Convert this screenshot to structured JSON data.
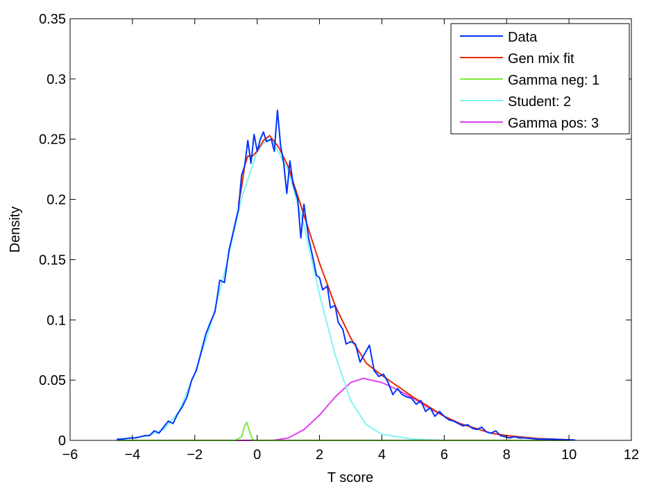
{
  "chart_data": {
    "type": "line",
    "title": "",
    "xlabel": "T score",
    "ylabel": "Density",
    "xlim": [
      -6,
      12
    ],
    "ylim": [
      0,
      0.35
    ],
    "xticks": [
      "-6",
      "-4",
      "-2",
      "0",
      "2",
      "4",
      "6",
      "8",
      "10",
      "12"
    ],
    "yticks": [
      "0",
      "0.05",
      "0.1",
      "0.15",
      "0.2",
      "0.25",
      "0.3",
      "0.35"
    ],
    "grid": false,
    "legend_position": "top-right",
    "series": [
      {
        "name": "Data",
        "color": "#0033ff",
        "points": [
          [
            -4.5,
            0.001
          ],
          [
            -4.35,
            0.001
          ],
          [
            -4.2,
            0.0015
          ],
          [
            -4.05,
            0.002
          ],
          [
            -3.9,
            0.002
          ],
          [
            -3.75,
            0.003
          ],
          [
            -3.6,
            0.004
          ],
          [
            -3.45,
            0.004
          ],
          [
            -3.3,
            0.008
          ],
          [
            -3.15,
            0.006
          ],
          [
            -3.0,
            0.011
          ],
          [
            -2.85,
            0.016
          ],
          [
            -2.7,
            0.014
          ],
          [
            -2.55,
            0.022
          ],
          [
            -2.4,
            0.028
          ],
          [
            -2.25,
            0.036
          ],
          [
            -2.1,
            0.05
          ],
          [
            -1.95,
            0.058
          ],
          [
            -1.8,
            0.073
          ],
          [
            -1.65,
            0.088
          ],
          [
            -1.5,
            0.098
          ],
          [
            -1.35,
            0.107
          ],
          [
            -1.2,
            0.133
          ],
          [
            -1.05,
            0.131
          ],
          [
            -0.9,
            0.158
          ],
          [
            -0.75,
            0.175
          ],
          [
            -0.6,
            0.192
          ],
          [
            -0.5,
            0.22
          ],
          [
            -0.4,
            0.228
          ],
          [
            -0.3,
            0.249
          ],
          [
            -0.2,
            0.23
          ],
          [
            -0.1,
            0.254
          ],
          [
            0,
            0.24
          ],
          [
            0.1,
            0.25
          ],
          [
            0.2,
            0.256
          ],
          [
            0.3,
            0.248
          ],
          [
            0.45,
            0.25
          ],
          [
            0.55,
            0.24
          ],
          [
            0.65,
            0.274
          ],
          [
            0.75,
            0.245
          ],
          [
            0.85,
            0.23
          ],
          [
            0.95,
            0.205
          ],
          [
            1.05,
            0.232
          ],
          [
            1.15,
            0.213
          ],
          [
            1.3,
            0.2
          ],
          [
            1.4,
            0.168
          ],
          [
            1.5,
            0.196
          ],
          [
            1.65,
            0.168
          ],
          [
            1.8,
            0.15
          ],
          [
            1.9,
            0.137
          ],
          [
            2.0,
            0.135
          ],
          [
            2.1,
            0.125
          ],
          [
            2.25,
            0.128
          ],
          [
            2.35,
            0.11
          ],
          [
            2.5,
            0.112
          ],
          [
            2.6,
            0.098
          ],
          [
            2.75,
            0.092
          ],
          [
            2.85,
            0.08
          ],
          [
            3.0,
            0.082
          ],
          [
            3.15,
            0.08
          ],
          [
            3.3,
            0.065
          ],
          [
            3.45,
            0.072
          ],
          [
            3.6,
            0.079
          ],
          [
            3.75,
            0.058
          ],
          [
            3.9,
            0.053
          ],
          [
            4.05,
            0.055
          ],
          [
            4.2,
            0.048
          ],
          [
            4.35,
            0.038
          ],
          [
            4.5,
            0.043
          ],
          [
            4.65,
            0.038
          ],
          [
            4.8,
            0.036
          ],
          [
            4.95,
            0.035
          ],
          [
            5.1,
            0.03
          ],
          [
            5.25,
            0.033
          ],
          [
            5.4,
            0.024
          ],
          [
            5.55,
            0.027
          ],
          [
            5.7,
            0.02
          ],
          [
            5.85,
            0.024
          ],
          [
            6.0,
            0.02
          ],
          [
            6.15,
            0.017
          ],
          [
            6.3,
            0.016
          ],
          [
            6.45,
            0.014
          ],
          [
            6.6,
            0.012
          ],
          [
            6.75,
            0.013
          ],
          [
            6.9,
            0.01
          ],
          [
            7.05,
            0.009
          ],
          [
            7.2,
            0.011
          ],
          [
            7.35,
            0.007
          ],
          [
            7.5,
            0.006
          ],
          [
            7.65,
            0.008
          ],
          [
            7.8,
            0.004
          ],
          [
            7.95,
            0.003
          ],
          [
            8.1,
            0.002
          ],
          [
            8.25,
            0.003
          ],
          [
            8.4,
            0.002
          ],
          [
            8.6,
            0.002
          ],
          [
            8.8,
            0.0015
          ],
          [
            9.0,
            0.001
          ],
          [
            9.2,
            0.001
          ],
          [
            9.4,
            0.001
          ],
          [
            9.6,
            0.0008
          ],
          [
            9.8,
            0.0005
          ],
          [
            10.0,
            0.0005
          ],
          [
            10.2,
            0.0003
          ]
        ]
      },
      {
        "name": "Gen mix fit",
        "color": "#e62800",
        "points": [
          [
            -0.6,
            0.196
          ],
          [
            -0.5,
            0.21
          ],
          [
            -0.4,
            0.228
          ],
          [
            -0.3,
            0.236
          ],
          [
            -0.15,
            0.236
          ],
          [
            0,
            0.24
          ],
          [
            0.2,
            0.249
          ],
          [
            0.4,
            0.253
          ],
          [
            0.7,
            0.243
          ],
          [
            1.0,
            0.227
          ],
          [
            1.5,
            0.187
          ],
          [
            2.0,
            0.147
          ],
          [
            2.5,
            0.112
          ],
          [
            3.0,
            0.085
          ],
          [
            3.5,
            0.064
          ],
          [
            4.0,
            0.054
          ],
          [
            4.5,
            0.045
          ],
          [
            5.0,
            0.036
          ],
          [
            5.5,
            0.028
          ],
          [
            6.0,
            0.02
          ],
          [
            6.5,
            0.014
          ],
          [
            7.0,
            0.01
          ],
          [
            7.5,
            0.006
          ],
          [
            8.0,
            0.004
          ],
          [
            9.0,
            0.0015
          ],
          [
            10.0,
            0.0005
          ]
        ]
      },
      {
        "name": "Gamma neg: 1",
        "color": "#7fe83c",
        "points": [
          [
            -4.5,
            0
          ],
          [
            -0.7,
            0
          ],
          [
            -0.5,
            0.003
          ],
          [
            -0.4,
            0.012
          ],
          [
            -0.33,
            0.015
          ],
          [
            -0.25,
            0.008
          ],
          [
            -0.15,
            0.001
          ],
          [
            -0.1,
            0
          ],
          [
            10.0,
            0
          ]
        ]
      },
      {
        "name": "Student: 2",
        "color": "#7ff4f4",
        "points": [
          [
            -4.5,
            0.001
          ],
          [
            -4.0,
            0.002
          ],
          [
            -3.5,
            0.004
          ],
          [
            -3.0,
            0.009
          ],
          [
            -2.5,
            0.024
          ],
          [
            -2.0,
            0.056
          ],
          [
            -1.5,
            0.095
          ],
          [
            -1.0,
            0.144
          ],
          [
            -0.5,
            0.201
          ],
          [
            0,
            0.24
          ],
          [
            0.4,
            0.253
          ],
          [
            1.0,
            0.224
          ],
          [
            1.5,
            0.178
          ],
          [
            2.0,
            0.121
          ],
          [
            2.5,
            0.071
          ],
          [
            3.0,
            0.033
          ],
          [
            3.5,
            0.013
          ],
          [
            4.0,
            0.005
          ],
          [
            5.0,
            0.001
          ],
          [
            6.0,
            0
          ],
          [
            10.0,
            0
          ]
        ]
      },
      {
        "name": "Gamma pos: 3",
        "color": "#e040f0",
        "points": [
          [
            -4.5,
            0
          ],
          [
            0.5,
            0
          ],
          [
            1.0,
            0.002
          ],
          [
            1.5,
            0.009
          ],
          [
            2.0,
            0.021
          ],
          [
            2.5,
            0.036
          ],
          [
            3.0,
            0.048
          ],
          [
            3.4,
            0.0515
          ],
          [
            4.0,
            0.048
          ],
          [
            4.5,
            0.042
          ],
          [
            5.0,
            0.035
          ],
          [
            5.5,
            0.027
          ],
          [
            6.0,
            0.02
          ],
          [
            6.5,
            0.014
          ],
          [
            7.0,
            0.01
          ],
          [
            7.5,
            0.006
          ],
          [
            8.0,
            0.004
          ],
          [
            9.0,
            0.0015
          ],
          [
            10.0,
            0.0005
          ]
        ]
      }
    ]
  }
}
